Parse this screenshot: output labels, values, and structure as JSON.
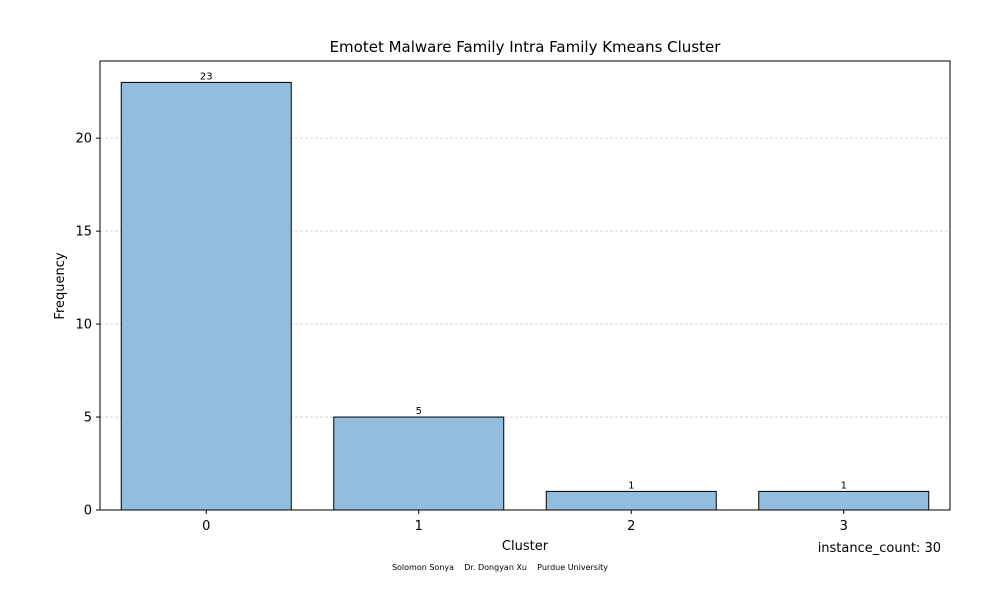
{
  "chart_data": {
    "type": "bar",
    "title": "Emotet Malware Family Intra Family Kmeans Cluster",
    "xlabel": "Cluster",
    "ylabel": "Frequency",
    "categories": [
      "0",
      "1",
      "2",
      "3"
    ],
    "values": [
      23,
      5,
      1,
      1
    ],
    "data_labels": [
      "23",
      "5",
      "1",
      "1"
    ],
    "yticks": [
      0,
      5,
      10,
      15,
      20
    ],
    "ylim": [
      0,
      24.15
    ],
    "grid": "horizontal-dashed",
    "bar_color": "#92bddc",
    "bar_edge_color": "#000000",
    "annotation": "instance_count: 30",
    "footer": "Solomon Sonya    Dr. Dongyan Xu    Purdue University"
  }
}
